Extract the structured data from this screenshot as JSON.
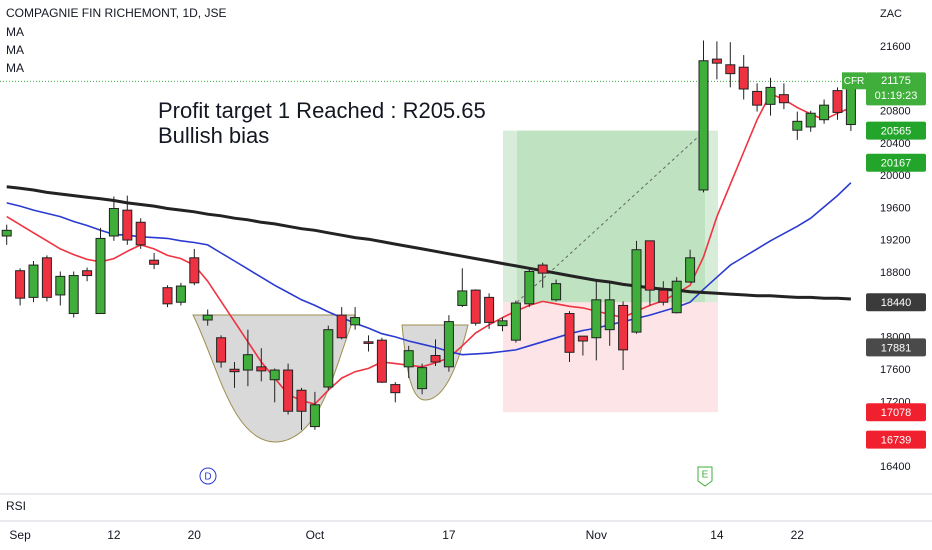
{
  "chart_data": {
    "type": "candlestick",
    "title": "COMPAGNIE FIN RICHEMONT, 1D, JSE",
    "y_unit": "ZAC",
    "pane_label": "RSI",
    "annotations": [
      "Profit target 1 Reached : R205.65",
      "Bullish bias"
    ],
    "events": [
      "D",
      "E"
    ],
    "up_color": "#3fae3a",
    "down_color": "#ee3242",
    "categories": [
      null,
      "Sep",
      null,
      null,
      null,
      null,
      null,
      null,
      "12",
      null,
      null,
      null,
      null,
      null,
      "20",
      null,
      null,
      null,
      null,
      null,
      null,
      null,
      null,
      "Oct",
      null,
      null,
      null,
      null,
      null,
      null,
      null,
      null,
      null,
      "17",
      null,
      null,
      null,
      null,
      null,
      null,
      null,
      null,
      null,
      null,
      "Nov",
      null,
      null,
      null,
      null,
      null,
      null,
      null,
      null,
      "14",
      null,
      null,
      null,
      null,
      null,
      "22",
      null,
      null,
      null,
      null
    ],
    "open": [
      19260,
      18830,
      18500,
      18990,
      18530,
      18300,
      18830,
      18300,
      19260,
      19580,
      19430,
      18960,
      18620,
      18440,
      18990,
      18220,
      18000,
      17610,
      17600,
      17640,
      17480,
      17600,
      17350,
      16900,
      17390,
      18280,
      18160,
      17950,
      17970,
      17420,
      17640,
      17370,
      17780,
      17640,
      18400,
      18590,
      18500,
      18150,
      17970,
      18420,
      18900,
      18470,
      18300,
      18020,
      18000,
      18100,
      18400,
      18070,
      19200,
      18590,
      18310,
      18690,
      19830,
      21450,
      21380,
      21350,
      21050,
      20890,
      21010,
      20570,
      20610,
      20700,
      21060,
      20640
    ],
    "high": [
      19400,
      18860,
      18950,
      19020,
      18820,
      18820,
      18870,
      19360,
      19750,
      19760,
      19480,
      19050,
      18650,
      18680,
      19100,
      18350,
      18030,
      17700,
      18100,
      17870,
      17620,
      17680,
      17380,
      17330,
      18150,
      18380,
      18380,
      18030,
      18000,
      17450,
      17900,
      17680,
      17980,
      18280,
      18860,
      18600,
      18550,
      18250,
      18460,
      18850,
      18930,
      18720,
      18330,
      18020,
      18700,
      18700,
      18450,
      19200,
      19200,
      18700,
      18750,
      19090,
      21680,
      21670,
      21660,
      21500,
      21150,
      21220,
      21150,
      20800,
      20810,
      20950,
      21100,
      21175
    ],
    "low": [
      19150,
      18400,
      18440,
      18450,
      18400,
      18250,
      18700,
      18300,
      19200,
      19150,
      19100,
      18850,
      18380,
      18400,
      18650,
      18150,
      17630,
      17380,
      17400,
      17460,
      17200,
      17050,
      16860,
      16860,
      17350,
      17980,
      18100,
      17830,
      17440,
      17200,
      17500,
      17300,
      17650,
      17580,
      18380,
      18150,
      18110,
      18080,
      17940,
      18380,
      18620,
      18450,
      17700,
      17780,
      17720,
      17900,
      17600,
      18050,
      18400,
      18400,
      18300,
      18680,
      19800,
      21200,
      21100,
      20950,
      20800,
      20750,
      20830,
      20450,
      20550,
      20650,
      20700,
      20560
    ],
    "close": [
      19330,
      18490,
      18900,
      18500,
      18760,
      18770,
      18770,
      19230,
      19600,
      19210,
      19150,
      18910,
      18420,
      18640,
      18680,
      18280,
      17700,
      17580,
      17790,
      17590,
      17600,
      17090,
      17090,
      17170,
      18100,
      18000,
      18250,
      17930,
      17450,
      17320,
      17840,
      17630,
      17700,
      18200,
      18580,
      18180,
      18190,
      18210,
      18430,
      18820,
      18800,
      18670,
      17820,
      17960,
      18470,
      18470,
      17850,
      19090,
      18590,
      18440,
      18700,
      18990,
      21430,
      21400,
      21270,
      21080,
      20880,
      21100,
      20910,
      20680,
      20780,
      20880,
      20790,
      21175
    ],
    "series": [
      {
        "name": "MA",
        "color": "#ef3340",
        "values": [
          19500,
          19400,
          19300,
          19200,
          19100,
          19030,
          18970,
          18940,
          18980,
          19070,
          19150,
          19100,
          19020,
          18980,
          18900,
          18700,
          18450,
          18200,
          17950,
          17700,
          17500,
          17300,
          17220,
          17180,
          17350,
          17500,
          17580,
          17620,
          17700,
          17680,
          17660,
          17640,
          17690,
          17750,
          17900,
          18060,
          18160,
          18250,
          18330,
          18400,
          18450,
          18420,
          18390,
          18370,
          18330,
          18290,
          18250,
          18330,
          18400,
          18460,
          18550,
          18650,
          19000,
          19500,
          19900,
          20300,
          20700,
          21020,
          20950,
          20850,
          20770,
          20700,
          20780,
          20850
        ]
      },
      {
        "name": "MA",
        "color": "#2b3ad0",
        "values": [
          19670,
          19630,
          19580,
          19540,
          19500,
          19440,
          19390,
          19330,
          19280,
          19270,
          19250,
          19240,
          19230,
          19200,
          19180,
          19150,
          19050,
          18950,
          18850,
          18750,
          18650,
          18560,
          18470,
          18400,
          18320,
          18250,
          18180,
          18120,
          18050,
          18010,
          17960,
          17920,
          17880,
          17830,
          17790,
          17800,
          17810,
          17830,
          17850,
          17900,
          17950,
          18000,
          18050,
          18090,
          18120,
          18160,
          18200,
          18240,
          18280,
          18330,
          18380,
          18440,
          18600,
          18750,
          18900,
          19000,
          19100,
          19200,
          19290,
          19380,
          19480,
          19620,
          19760,
          19920
        ]
      },
      {
        "name": "MA",
        "color": "#232323",
        "values": [
          19870,
          19850,
          19830,
          19800,
          19780,
          19760,
          19740,
          19720,
          19700,
          19670,
          19650,
          19630,
          19600,
          19580,
          19560,
          19530,
          19510,
          19480,
          19460,
          19430,
          19410,
          19380,
          19350,
          19330,
          19300,
          19270,
          19240,
          19220,
          19190,
          19160,
          19130,
          19100,
          19070,
          19040,
          19010,
          18980,
          18950,
          18920,
          18890,
          18860,
          18830,
          18800,
          18770,
          18740,
          18710,
          18690,
          18660,
          18640,
          18620,
          18600,
          18590,
          18570,
          18560,
          18550,
          18540,
          18530,
          18520,
          18520,
          18510,
          18500,
          18500,
          18490,
          18490,
          18480
        ]
      }
    ],
    "ylim": [
      16053,
      22182
    ],
    "yticks": [
      16400,
      17200,
      17600,
      18000,
      18800,
      19200,
      19600,
      20000,
      20400,
      20800,
      21600
    ],
    "last_price": {
      "symbol": "CFR",
      "value": 21175,
      "countdown": "01:19:23",
      "color": "#3fae3a"
    },
    "price_labels": [
      {
        "value": 20565,
        "color": "#22a52a"
      },
      {
        "value": 20167,
        "color": "#22a52a"
      },
      {
        "value": 18440,
        "color": "#3b3b3b"
      },
      {
        "value": 17881,
        "color": "#4a4a4a"
      },
      {
        "value": 17078,
        "color": "#f0202f"
      },
      {
        "value": 16739,
        "color": "#f0202f"
      }
    ]
  }
}
